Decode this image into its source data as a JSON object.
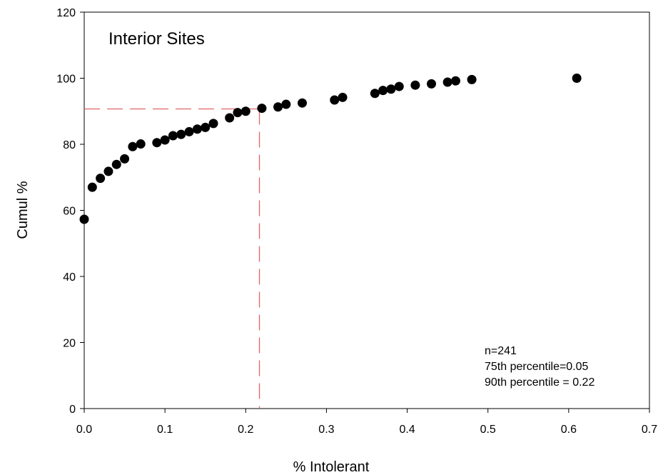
{
  "chart_data": {
    "type": "scatter",
    "title": "Interior Sites",
    "xlabel": "% Intolerant",
    "ylabel": "Cumul %",
    "xlim": [
      0,
      0.7
    ],
    "ylim": [
      0,
      120
    ],
    "x_ticks": [
      0.0,
      0.1,
      0.2,
      0.3,
      0.4,
      0.5,
      0.6,
      0.7
    ],
    "x_tick_labels": [
      "0.0",
      "0.1",
      "0.2",
      "0.3",
      "0.4",
      "0.5",
      "0.6",
      "0.7"
    ],
    "y_ticks": [
      0,
      20,
      40,
      60,
      80,
      100,
      120
    ],
    "y_tick_labels": [
      "0",
      "20",
      "40",
      "60",
      "80",
      "100",
      "120"
    ],
    "grid": false,
    "points": [
      {
        "x": 0.0,
        "y": 57.3
      },
      {
        "x": 0.01,
        "y": 67.0
      },
      {
        "x": 0.02,
        "y": 69.7
      },
      {
        "x": 0.03,
        "y": 71.8
      },
      {
        "x": 0.04,
        "y": 73.9
      },
      {
        "x": 0.05,
        "y": 75.6
      },
      {
        "x": 0.06,
        "y": 79.3
      },
      {
        "x": 0.07,
        "y": 80.1
      },
      {
        "x": 0.09,
        "y": 80.5
      },
      {
        "x": 0.1,
        "y": 81.3
      },
      {
        "x": 0.11,
        "y": 82.6
      },
      {
        "x": 0.12,
        "y": 83.0
      },
      {
        "x": 0.13,
        "y": 83.8
      },
      {
        "x": 0.14,
        "y": 84.6
      },
      {
        "x": 0.15,
        "y": 85.1
      },
      {
        "x": 0.16,
        "y": 86.3
      },
      {
        "x": 0.18,
        "y": 88.0
      },
      {
        "x": 0.19,
        "y": 89.6
      },
      {
        "x": 0.2,
        "y": 90.0
      },
      {
        "x": 0.22,
        "y": 90.9
      },
      {
        "x": 0.24,
        "y": 91.3
      },
      {
        "x": 0.25,
        "y": 92.1
      },
      {
        "x": 0.27,
        "y": 92.5
      },
      {
        "x": 0.31,
        "y": 93.4
      },
      {
        "x": 0.32,
        "y": 94.2
      },
      {
        "x": 0.36,
        "y": 95.4
      },
      {
        "x": 0.37,
        "y": 96.3
      },
      {
        "x": 0.38,
        "y": 96.7
      },
      {
        "x": 0.39,
        "y": 97.5
      },
      {
        "x": 0.41,
        "y": 97.9
      },
      {
        "x": 0.43,
        "y": 98.3
      },
      {
        "x": 0.45,
        "y": 98.8
      },
      {
        "x": 0.46,
        "y": 99.2
      },
      {
        "x": 0.48,
        "y": 99.6
      },
      {
        "x": 0.61,
        "y": 100.0
      }
    ],
    "reference_lines": {
      "x": 0.217,
      "y": 90.7,
      "color": "#e06666",
      "style": "dashed"
    },
    "annotations": [
      "n=241",
      "75th percentile=0.05",
      "90th percentile = 0.22"
    ],
    "colors": {
      "marker": "#000000",
      "axes": "#000000",
      "reference": "#e06666"
    }
  }
}
